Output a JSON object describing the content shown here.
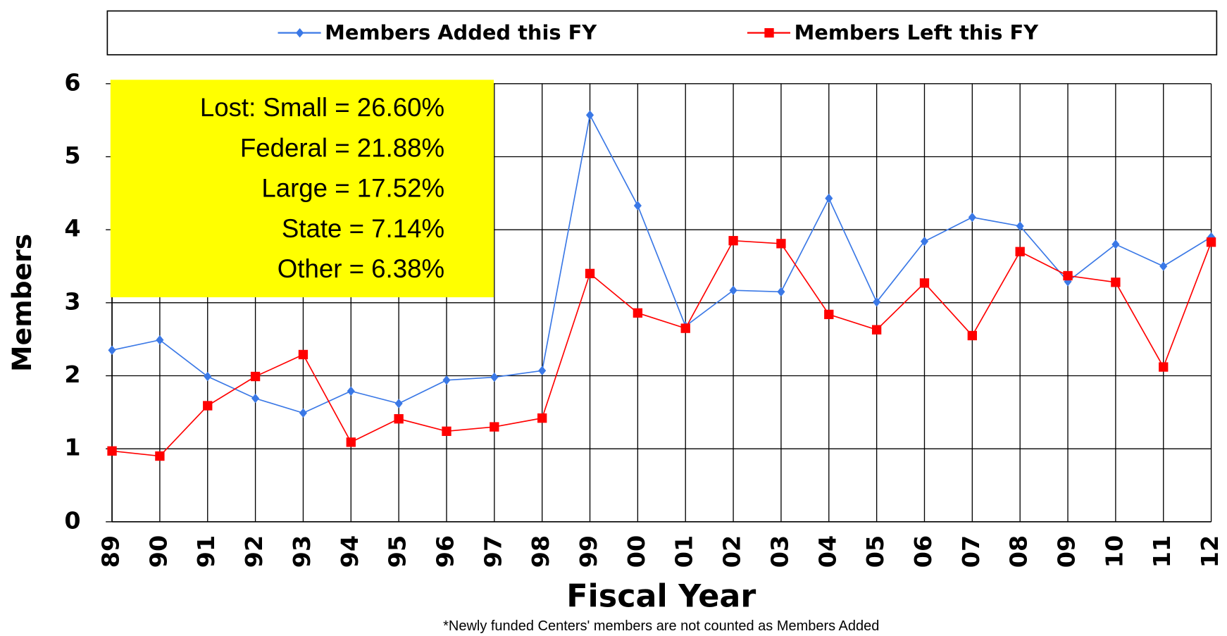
{
  "chart_data": {
    "type": "line",
    "x_label": "Fiscal Year",
    "y_label": "Members",
    "footnote": "*Newly funded  Centers' members are not counted as Members Added",
    "annotation": [
      "Lost: Small = 26.60%",
      "Federal = 21.88%",
      "Large = 17.52%",
      "State = 7.14%",
      "Other = 6.38%"
    ],
    "annotation_color": "#ffff00",
    "categories": [
      "89",
      "90",
      "91",
      "92",
      "93",
      "94",
      "95",
      "96",
      "97",
      "98",
      "99",
      "00",
      "01",
      "02",
      "03",
      "04",
      "05",
      "06",
      "07",
      "08",
      "09",
      "10",
      "11",
      "12"
    ],
    "series": [
      {
        "name": "Members Added this FY",
        "color": "#3a78e6",
        "marker": "diamond",
        "values": [
          2.35,
          2.49,
          1.99,
          1.69,
          1.49,
          1.79,
          1.62,
          1.94,
          1.98,
          2.07,
          5.57,
          4.33,
          2.68,
          3.17,
          3.15,
          4.43,
          3.01,
          3.84,
          4.17,
          4.05,
          3.29,
          3.8,
          3.5,
          3.9
        ]
      },
      {
        "name": "Members Left this FY",
        "color": "#ff0000",
        "marker": "square",
        "values": [
          0.97,
          0.9,
          1.59,
          1.99,
          2.29,
          1.09,
          1.41,
          1.24,
          1.3,
          1.42,
          3.4,
          2.86,
          2.65,
          3.85,
          3.81,
          2.84,
          2.63,
          3.27,
          2.55,
          3.7,
          3.37,
          3.28,
          2.12,
          3.83
        ]
      }
    ],
    "ylim": [
      0,
      6
    ],
    "yticks": [
      0,
      1,
      2,
      3,
      4,
      5,
      6
    ],
    "grid": true,
    "legend": "top"
  }
}
